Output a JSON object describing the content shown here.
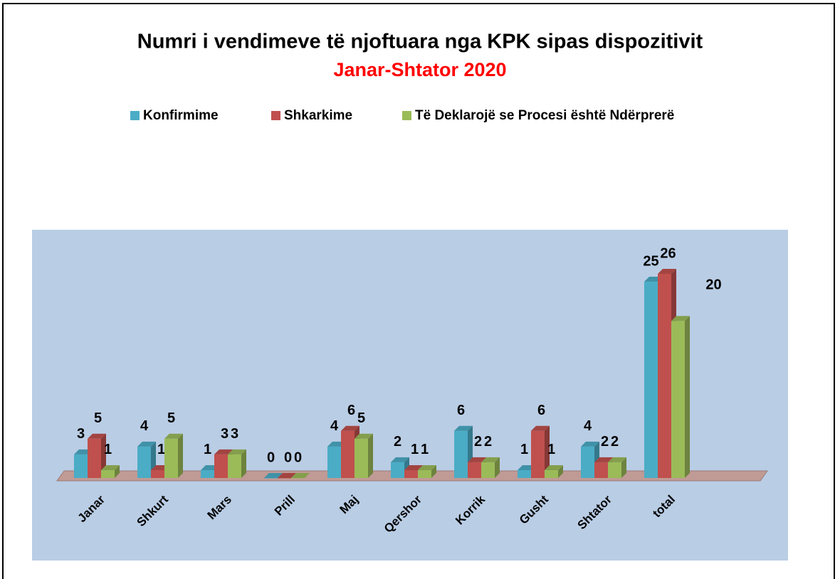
{
  "chart_data": {
    "type": "bar3d",
    "title": "Numri i vendimeve të njoftuara nga KPK sipas dispozitivit",
    "subtitle": "Janar-Shtator 2020",
    "categories": [
      "Janar",
      "Shkurt",
      "Mars",
      "Prill",
      "Maj",
      "Qershor",
      "Korrik",
      "Gusht",
      "Shtator",
      "total"
    ],
    "series": [
      {
        "name": "Konfirmime",
        "color": "#4bacc6",
        "values": [
          3,
          4,
          1,
          0,
          4,
          2,
          6,
          1,
          4,
          25
        ]
      },
      {
        "name": "Shkarkime",
        "color": "#c0504d",
        "values": [
          5,
          1,
          3,
          0,
          6,
          1,
          2,
          6,
          2,
          26
        ]
      },
      {
        "name": "Të Deklarojë se Procesi është Ndërprerë",
        "color": "#9bbb59",
        "values": [
          1,
          5,
          3,
          0,
          5,
          1,
          2,
          1,
          2,
          20
        ]
      }
    ],
    "legend": "top"
  }
}
